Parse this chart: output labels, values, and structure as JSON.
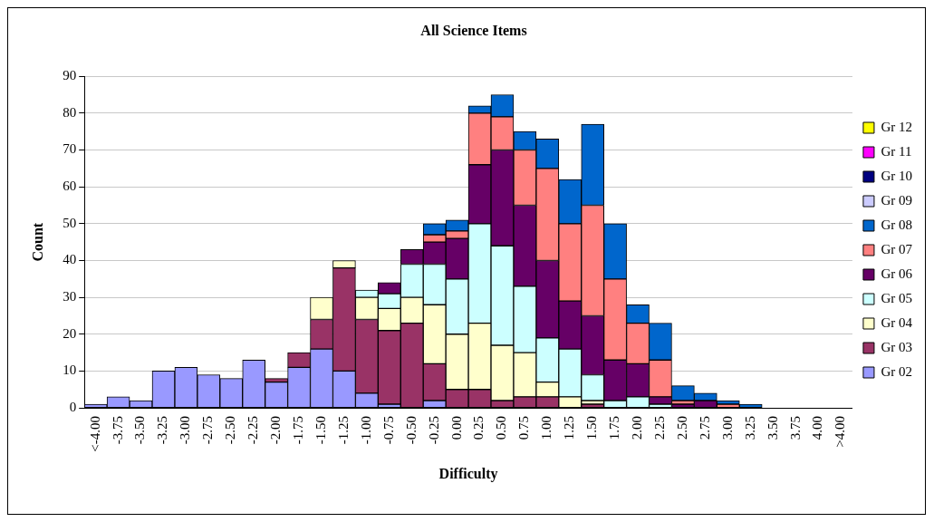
{
  "chart_data": {
    "type": "bar",
    "title": "All Science Items",
    "xlabel": "Difficulty",
    "ylabel": "Count",
    "stacked": true,
    "grid": "y",
    "legend": "right",
    "categories": [
      "<-4.00",
      "-3.75",
      "-3.50",
      "-3.25",
      "-3.00",
      "-2.75",
      "-2.50",
      "-2.25",
      "-2.00",
      "-1.75",
      "-1.50",
      "-1.25",
      "-1.00",
      "-0.75",
      "-0.50",
      "-0.25",
      "0.00",
      "0.25",
      "0.50",
      "0.75",
      "1.00",
      "1.25",
      "1.50",
      "1.75",
      "2.00",
      "2.25",
      "2.50",
      "2.75",
      "3.00",
      "3.25",
      "3.50",
      "3.75",
      "4.00",
      ">4.00"
    ],
    "ylim": [
      0,
      90
    ],
    "yticks": [
      0,
      10,
      20,
      30,
      40,
      50,
      60,
      70,
      80,
      90
    ],
    "series": [
      {
        "name": "Gr 02",
        "color": "#9999ff",
        "values": [
          1,
          3,
          2,
          10,
          11,
          9,
          8,
          13,
          7,
          11,
          16,
          10,
          4,
          1,
          0,
          2,
          0,
          0,
          0,
          0,
          0,
          0,
          0,
          0,
          0,
          0,
          0,
          0,
          0,
          0,
          0,
          0,
          0,
          0
        ]
      },
      {
        "name": "Gr 03",
        "color": "#993366",
        "values": [
          0,
          0,
          0,
          0,
          0,
          0,
          0,
          0,
          1,
          4,
          8,
          28,
          20,
          20,
          23,
          10,
          5,
          5,
          2,
          3,
          3,
          0,
          1,
          0,
          0,
          0,
          0,
          0,
          0,
          0,
          0,
          0,
          0,
          0
        ]
      },
      {
        "name": "Gr 04",
        "color": "#ffffcc",
        "values": [
          0,
          0,
          0,
          0,
          0,
          0,
          0,
          0,
          0,
          0,
          6,
          2,
          6,
          6,
          7,
          16,
          15,
          18,
          15,
          12,
          4,
          3,
          1,
          0,
          0,
          0,
          0,
          0,
          0,
          0,
          0,
          0,
          0,
          0
        ]
      },
      {
        "name": "Gr 05",
        "color": "#ccffff",
        "values": [
          0,
          0,
          0,
          0,
          0,
          0,
          0,
          0,
          0,
          0,
          0,
          0,
          2,
          4,
          9,
          11,
          15,
          27,
          27,
          18,
          12,
          13,
          7,
          2,
          3,
          1,
          0,
          0,
          0,
          0,
          0,
          0,
          0,
          0
        ]
      },
      {
        "name": "Gr 06",
        "color": "#660066",
        "values": [
          0,
          0,
          0,
          0,
          0,
          0,
          0,
          0,
          0,
          0,
          0,
          0,
          0,
          3,
          4,
          6,
          11,
          16,
          26,
          22,
          21,
          13,
          16,
          11,
          9,
          2,
          1,
          2,
          0,
          0,
          0,
          0,
          0,
          0
        ]
      },
      {
        "name": "Gr 07",
        "color": "#ff8080",
        "values": [
          0,
          0,
          0,
          0,
          0,
          0,
          0,
          0,
          0,
          0,
          0,
          0,
          0,
          0,
          0,
          2,
          2,
          14,
          9,
          15,
          25,
          21,
          30,
          22,
          11,
          10,
          1,
          0,
          1,
          0,
          0,
          0,
          0,
          0
        ]
      },
      {
        "name": "Gr 08",
        "color": "#0066cc",
        "values": [
          0,
          0,
          0,
          0,
          0,
          0,
          0,
          0,
          0,
          0,
          0,
          0,
          0,
          0,
          0,
          3,
          3,
          2,
          6,
          5,
          8,
          12,
          22,
          15,
          5,
          10,
          4,
          2,
          1,
          1,
          0,
          0,
          0,
          0
        ]
      },
      {
        "name": "Gr 09",
        "color": "#ccccff",
        "values": [
          0,
          0,
          0,
          0,
          0,
          0,
          0,
          0,
          0,
          0,
          0,
          0,
          0,
          0,
          0,
          0,
          0,
          0,
          0,
          0,
          0,
          0,
          0,
          0,
          0,
          0,
          0,
          0,
          0,
          0,
          0,
          0,
          0,
          0
        ]
      },
      {
        "name": "Gr 10",
        "color": "#000080",
        "values": [
          0,
          0,
          0,
          0,
          0,
          0,
          0,
          0,
          0,
          0,
          0,
          0,
          0,
          0,
          0,
          0,
          0,
          0,
          0,
          0,
          0,
          0,
          0,
          0,
          0,
          0,
          0,
          0,
          0,
          0,
          0,
          0,
          0,
          0
        ]
      },
      {
        "name": "Gr 11",
        "color": "#ff00ff",
        "values": [
          0,
          0,
          0,
          0,
          0,
          0,
          0,
          0,
          0,
          0,
          0,
          0,
          0,
          0,
          0,
          0,
          0,
          0,
          0,
          0,
          0,
          0,
          0,
          0,
          0,
          0,
          0,
          0,
          0,
          0,
          0,
          0,
          0,
          0
        ]
      },
      {
        "name": "Gr 12",
        "color": "#ffff00",
        "values": [
          0,
          0,
          0,
          0,
          0,
          0,
          0,
          0,
          0,
          0,
          0,
          0,
          0,
          0,
          0,
          0,
          0,
          0,
          0,
          0,
          0,
          0,
          0,
          0,
          0,
          0,
          0,
          0,
          0,
          0,
          0,
          0,
          0,
          0
        ]
      }
    ]
  }
}
